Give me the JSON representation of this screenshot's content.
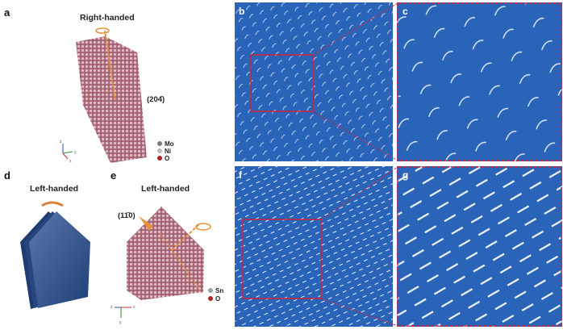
{
  "panels": {
    "a": {
      "label": "a",
      "title": "Right-handed",
      "plane": "(204̄)",
      "legend": [
        {
          "element": "Mo",
          "color": "#7a7a80"
        },
        {
          "element": "Ni",
          "color": "#b8bcc2"
        },
        {
          "element": "O",
          "color": "#b0242a"
        }
      ]
    },
    "b": {
      "label": "b"
    },
    "c": {
      "label": "c"
    },
    "d": {
      "label": "d",
      "title": "Left-handed"
    },
    "e": {
      "label": "e",
      "title": "Left-handed",
      "plane": "(11̄0)",
      "legend": [
        {
          "element": "Sn",
          "color": "#8fa3ad"
        },
        {
          "element": "O",
          "color": "#b0242a"
        }
      ]
    },
    "f": {
      "label": "f"
    },
    "g": {
      "label": "g"
    }
  },
  "axes_a": {
    "z": "z",
    "y": "y",
    "x": "x"
  },
  "axes_e": {
    "z": "z",
    "x": "x",
    "y": "y"
  },
  "colors": {
    "image_bg": "#2a64b8",
    "zoom_box": "#d0253a",
    "arrow": "#e8923a",
    "crystal": "#b97a86",
    "plate": "#2d4f8a"
  }
}
